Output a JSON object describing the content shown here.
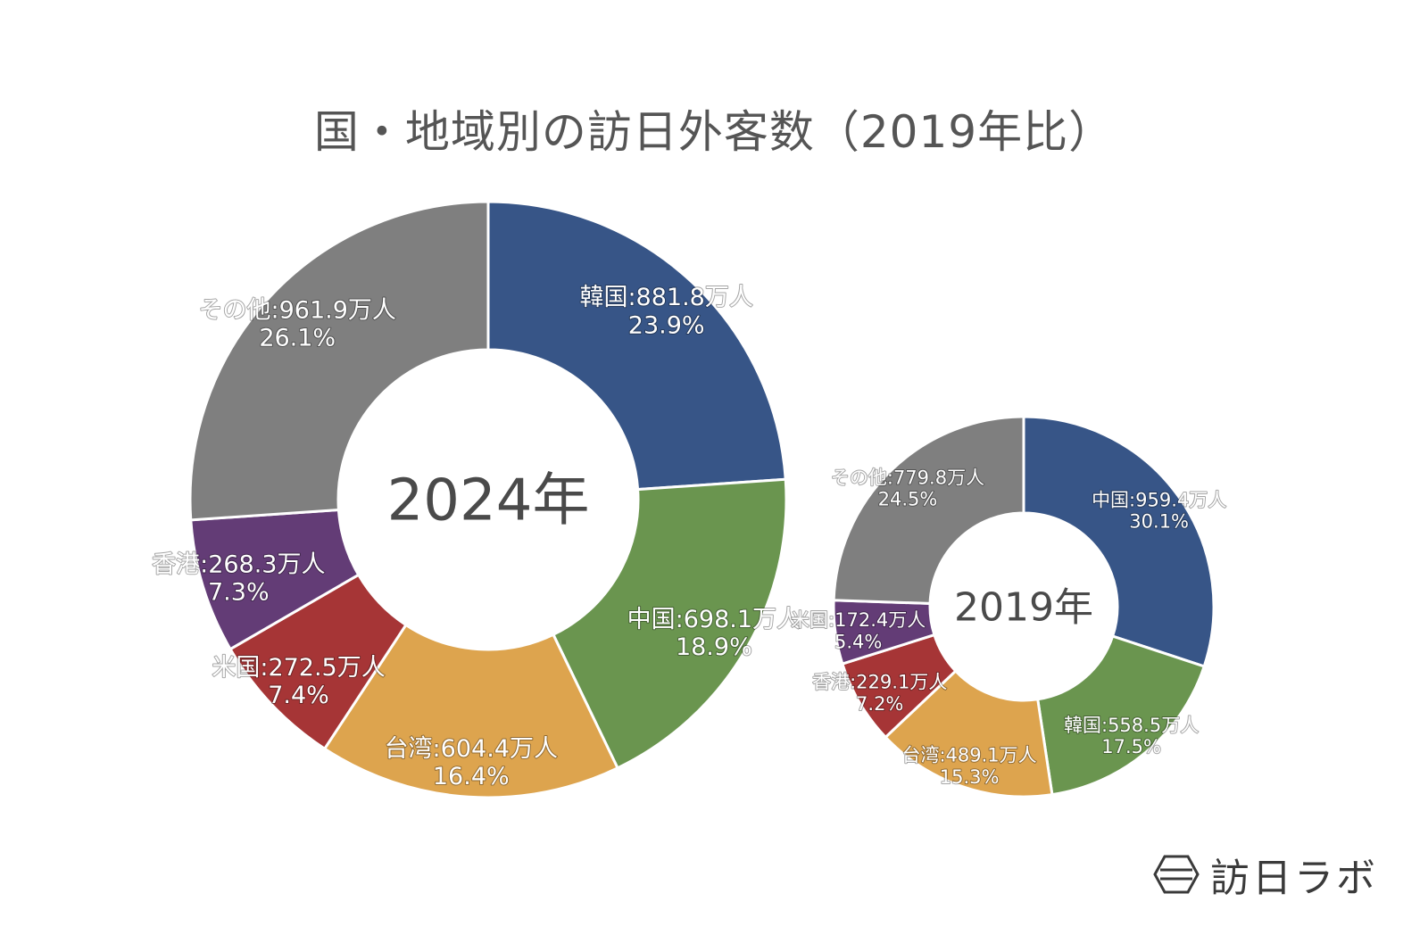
{
  "title": "国・地域別の訪日外客数（2019年比）",
  "brand": {
    "name": "訪日ラボ",
    "icon": "hexagon-logo-icon"
  },
  "chart_data": [
    {
      "type": "pie",
      "center_label": "2024年",
      "unit": "万人",
      "slices": [
        {
          "label": "韓国",
          "value": 881.8,
          "percent": "23.9%",
          "color": "#375587"
        },
        {
          "label": "中国",
          "value": 698.1,
          "percent": "18.9%",
          "color": "#6a954f"
        },
        {
          "label": "台湾",
          "value": 604.4,
          "percent": "16.4%",
          "color": "#dda44e"
        },
        {
          "label": "米国",
          "value": 272.5,
          "percent": "7.4%",
          "color": "#a63536"
        },
        {
          "label": "香港",
          "value": 268.3,
          "percent": "7.3%",
          "color": "#633c76"
        },
        {
          "label": "その他",
          "value": 961.9,
          "percent": "26.1%",
          "color": "#7f7f7f"
        }
      ]
    },
    {
      "type": "pie",
      "center_label": "2019年",
      "unit": "万人",
      "slices": [
        {
          "label": "中国",
          "value": 959.4,
          "percent": "30.1%",
          "color": "#375587"
        },
        {
          "label": "韓国",
          "value": 558.5,
          "percent": "17.5%",
          "color": "#6a954f"
        },
        {
          "label": "台湾",
          "value": 489.1,
          "percent": "15.3%",
          "color": "#dda44e"
        },
        {
          "label": "香港",
          "value": 229.1,
          "percent": "7.2%",
          "color": "#a63536"
        },
        {
          "label": "米国",
          "value": 172.4,
          "percent": "5.4%",
          "color": "#633c76"
        },
        {
          "label": "その他",
          "value": 779.8,
          "percent": "24.5%",
          "color": "#7f7f7f"
        }
      ]
    }
  ]
}
